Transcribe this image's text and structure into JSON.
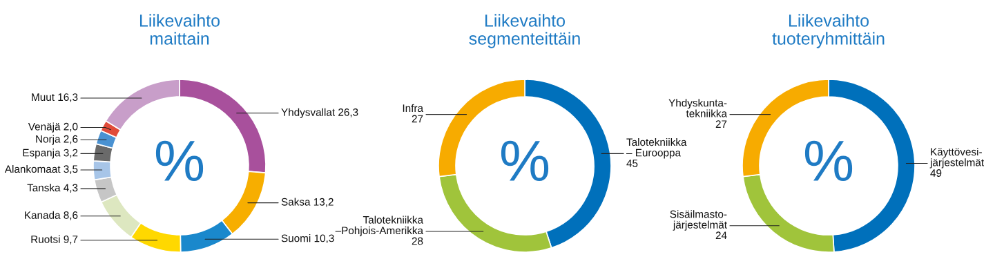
{
  "chart_data": [
    {
      "type": "donut",
      "title": "Liikevaihto\nmaittain",
      "annotations": [
        "%"
      ],
      "categories": [
        "Yhdysvallat",
        "Saksa",
        "Suomi",
        "Ruotsi",
        "Kanada",
        "Tanska",
        "Alankomaat",
        "Espanja",
        "Norja",
        "Venäjä",
        "Muut"
      ],
      "values": [
        26.3,
        13.2,
        10.3,
        9.7,
        8.6,
        4.3,
        3.5,
        3.2,
        2.6,
        2.0,
        16.3
      ],
      "value_labels": [
        "26,3",
        "13,2",
        "10,3",
        "9,7",
        "8,6",
        "4,3",
        "3,5",
        "3,2",
        "2,6",
        "2,0",
        "16,3"
      ],
      "colors": [
        "#a8509c",
        "#f7ae00",
        "#1a88cc",
        "#ffd800",
        "#dde7c0",
        "#c6c6c6",
        "#a7c5e8",
        "#6a6a6a",
        "#4a92d2",
        "#e04b3a",
        "#c89ec9"
      ]
    },
    {
      "type": "donut",
      "title": "Liikevaihto\nsegmenteittäin",
      "annotations": [
        "%"
      ],
      "categories": [
        "Talotekniikka\n– Eurooppa",
        "Talotekniikka\n–Pohjois-Amerikka",
        "Infra"
      ],
      "values": [
        45,
        28,
        27
      ],
      "data_labels": true,
      "colors": [
        "#0070bb",
        "#a0c43b",
        "#f7ab00"
      ]
    },
    {
      "type": "donut",
      "title": "Liikevaihto\ntuoteryhmittäin",
      "annotations": [
        "%"
      ],
      "categories": [
        "Käyttövesi-\njärjestelmät",
        "Sisäilmasto-\njärjestelmät",
        "Yhdyskunta-\ntekniikka"
      ],
      "values": [
        49,
        24,
        27
      ],
      "data_labels": true,
      "colors": [
        "#0070bb",
        "#a0c43b",
        "#f7ab00"
      ]
    }
  ]
}
